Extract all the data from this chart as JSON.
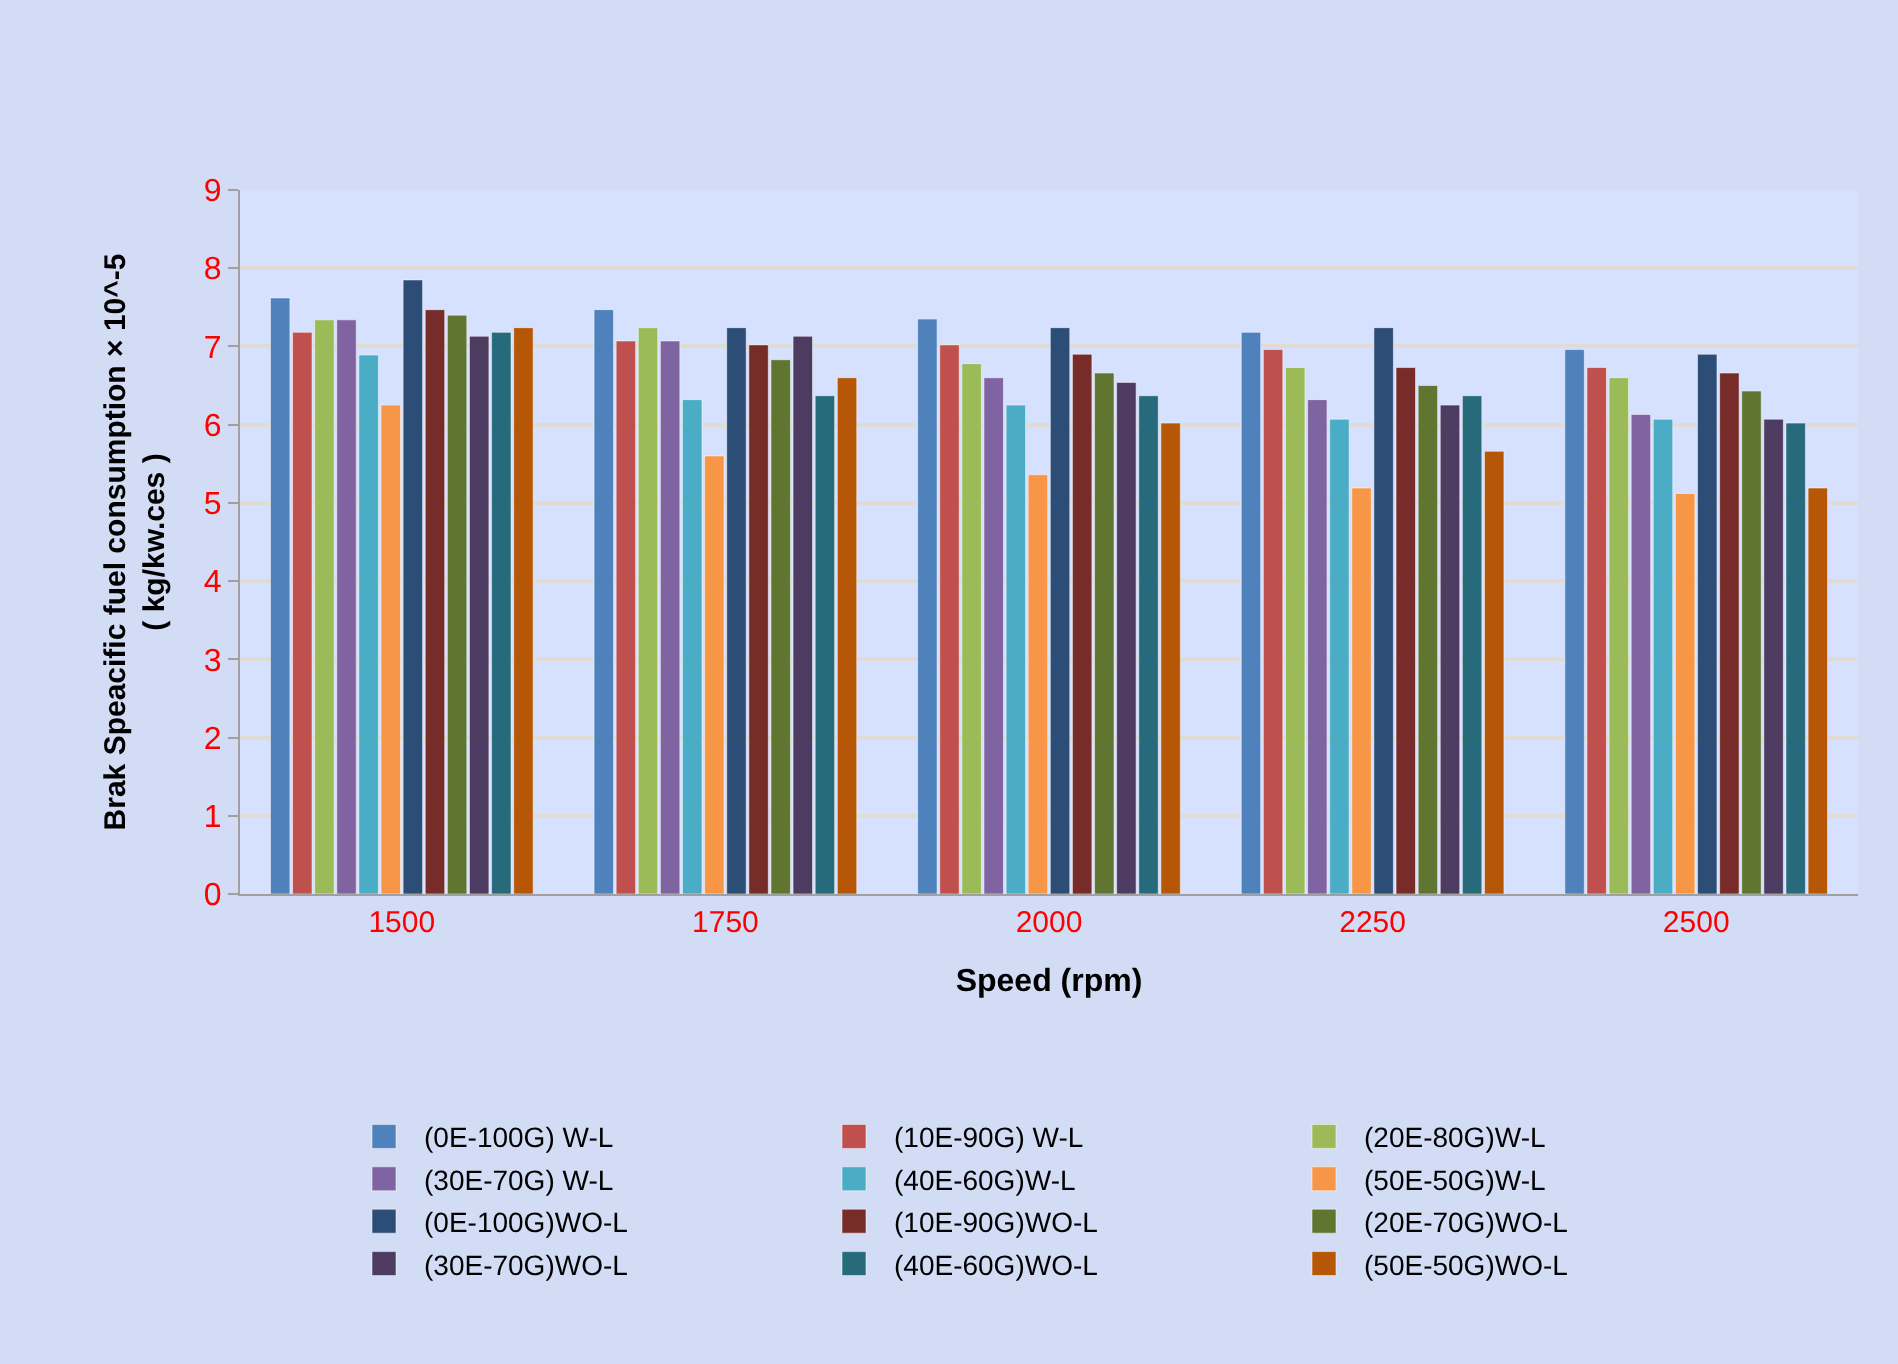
{
  "chart_data": {
    "type": "bar",
    "xlabel": "Speed (rpm)",
    "ylabel": "Brak Speacific fuel consumption × 10^-5\n( kg/kw.ces )",
    "categories": [
      "1500",
      "1750",
      "2000",
      "2250",
      "2500"
    ],
    "ylim": [
      0,
      9
    ],
    "yticks": [
      0,
      1,
      2,
      3,
      4,
      5,
      6,
      7,
      8,
      9
    ],
    "grid": "y",
    "legend": "bottom",
    "series": [
      {
        "name": "(0E-100G) W-L",
        "color": "#4f81bd",
        "values": [
          7.62,
          7.47,
          7.35,
          7.18,
          6.96
        ]
      },
      {
        "name": "(10E-90G) W-L",
        "color": "#c0504d",
        "values": [
          7.18,
          7.07,
          7.02,
          6.96,
          6.73
        ]
      },
      {
        "name": "(20E-80G)W-L",
        "color": "#9bbb59",
        "values": [
          7.34,
          7.24,
          6.78,
          6.73,
          6.6
        ]
      },
      {
        "name": "(30E-70G) W-L",
        "color": "#8064a2",
        "values": [
          7.34,
          7.07,
          6.6,
          6.32,
          6.13
        ]
      },
      {
        "name": "(40E-60G)W-L",
        "color": "#4bacc6",
        "values": [
          6.89,
          6.32,
          6.25,
          6.07,
          6.07
        ]
      },
      {
        "name": "(50E-50G)W-L",
        "color": "#f79646",
        "values": [
          6.25,
          5.6,
          5.36,
          5.19,
          5.12
        ]
      },
      {
        "name": "(0E-100G)WO-L",
        "color": "#2c4d75",
        "values": [
          7.85,
          7.24,
          7.24,
          7.24,
          6.9
        ]
      },
      {
        "name": "(10E-90G)WO-L",
        "color": "#772c2a",
        "values": [
          7.47,
          7.02,
          6.9,
          6.73,
          6.66
        ]
      },
      {
        "name": "(20E-70G)WO-L",
        "color": "#5f7530",
        "values": [
          7.4,
          6.83,
          6.66,
          6.5,
          6.43
        ]
      },
      {
        "name": "(30E-70G)WO-L",
        "color": "#4d3b62",
        "values": [
          7.13,
          7.13,
          6.54,
          6.25,
          6.07
        ]
      },
      {
        "name": "(40E-60G)WO-L",
        "color": "#276a7c",
        "values": [
          7.18,
          6.37,
          6.37,
          6.37,
          6.02
        ]
      },
      {
        "name": "(50E-50G)WO-L",
        "color": "#b65708",
        "values": [
          7.24,
          6.6,
          6.02,
          5.66,
          5.19
        ]
      }
    ]
  }
}
